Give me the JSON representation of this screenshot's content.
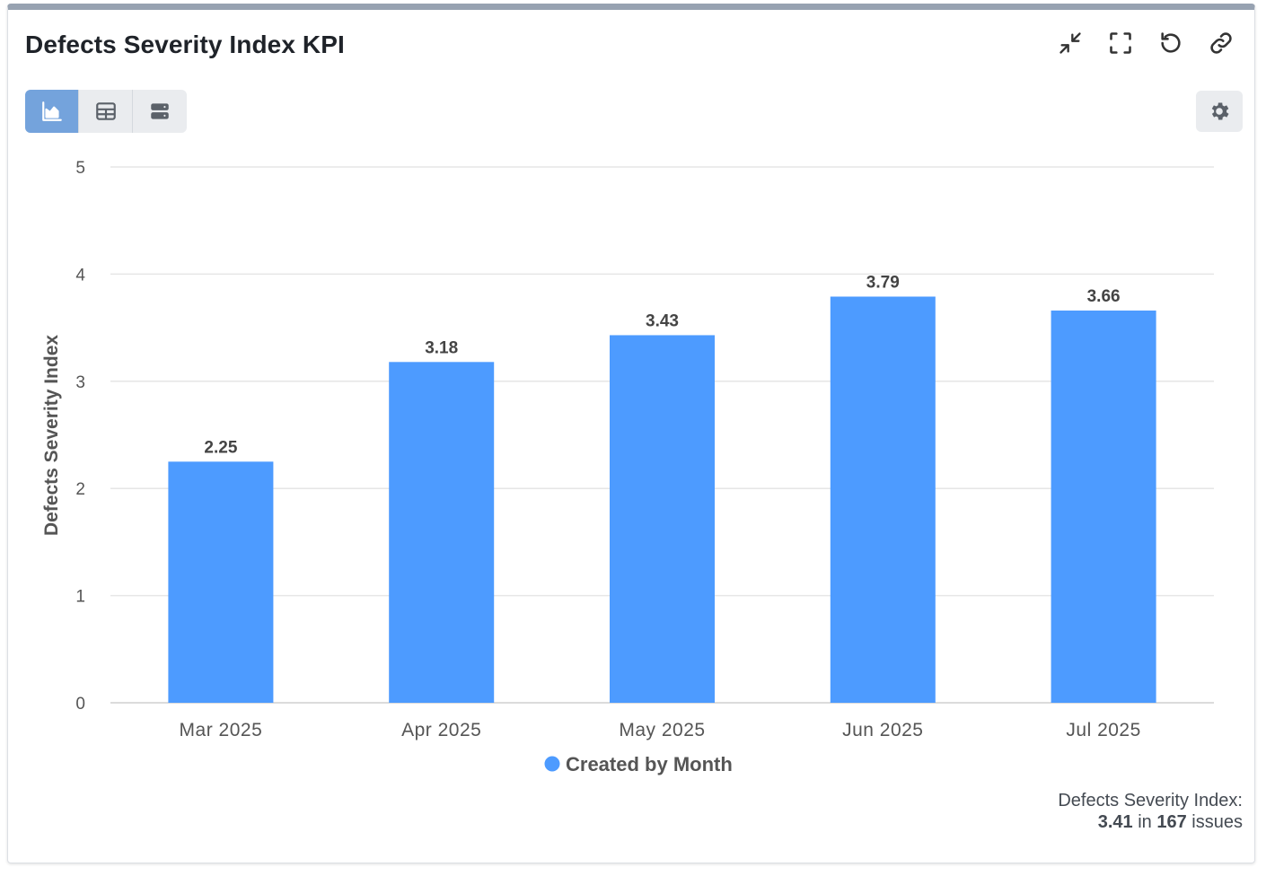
{
  "header": {
    "title": "Defects Severity Index KPI"
  },
  "toolbar": {
    "icons": [
      "collapse-icon",
      "fullscreen-icon",
      "refresh-icon",
      "link-icon"
    ]
  },
  "view_toggle": {
    "icons": [
      "chart-icon",
      "table-icon",
      "list-icon"
    ],
    "active_index": 0,
    "active_color": "#74a3dc"
  },
  "settings": {
    "icon": "gear-icon"
  },
  "colors": {
    "bar": "#4d9bff",
    "grid": "#e6e6e6",
    "axis_text": "#555555"
  },
  "chart_data": {
    "type": "bar",
    "categories": [
      "Mar 2025",
      "Apr 2025",
      "May 2025",
      "Jun 2025",
      "Jul 2025"
    ],
    "series": [
      {
        "name": "Created by Month",
        "values": [
          2.25,
          3.18,
          3.43,
          3.79,
          3.66
        ]
      }
    ],
    "data_labels": [
      "2.25",
      "3.18",
      "3.43",
      "3.79",
      "3.66"
    ],
    "ylabel": "Defects Severity Index",
    "xlabel": "",
    "ylim": [
      0,
      5
    ],
    "yticks": [
      "0",
      "1",
      "2",
      "3",
      "4",
      "5"
    ],
    "grid": true,
    "legend_position": "bottom-center"
  },
  "footer": {
    "label": "Defects Severity Index:",
    "value": "3.41",
    "connector": "in",
    "count": "167",
    "unit": "issues"
  }
}
